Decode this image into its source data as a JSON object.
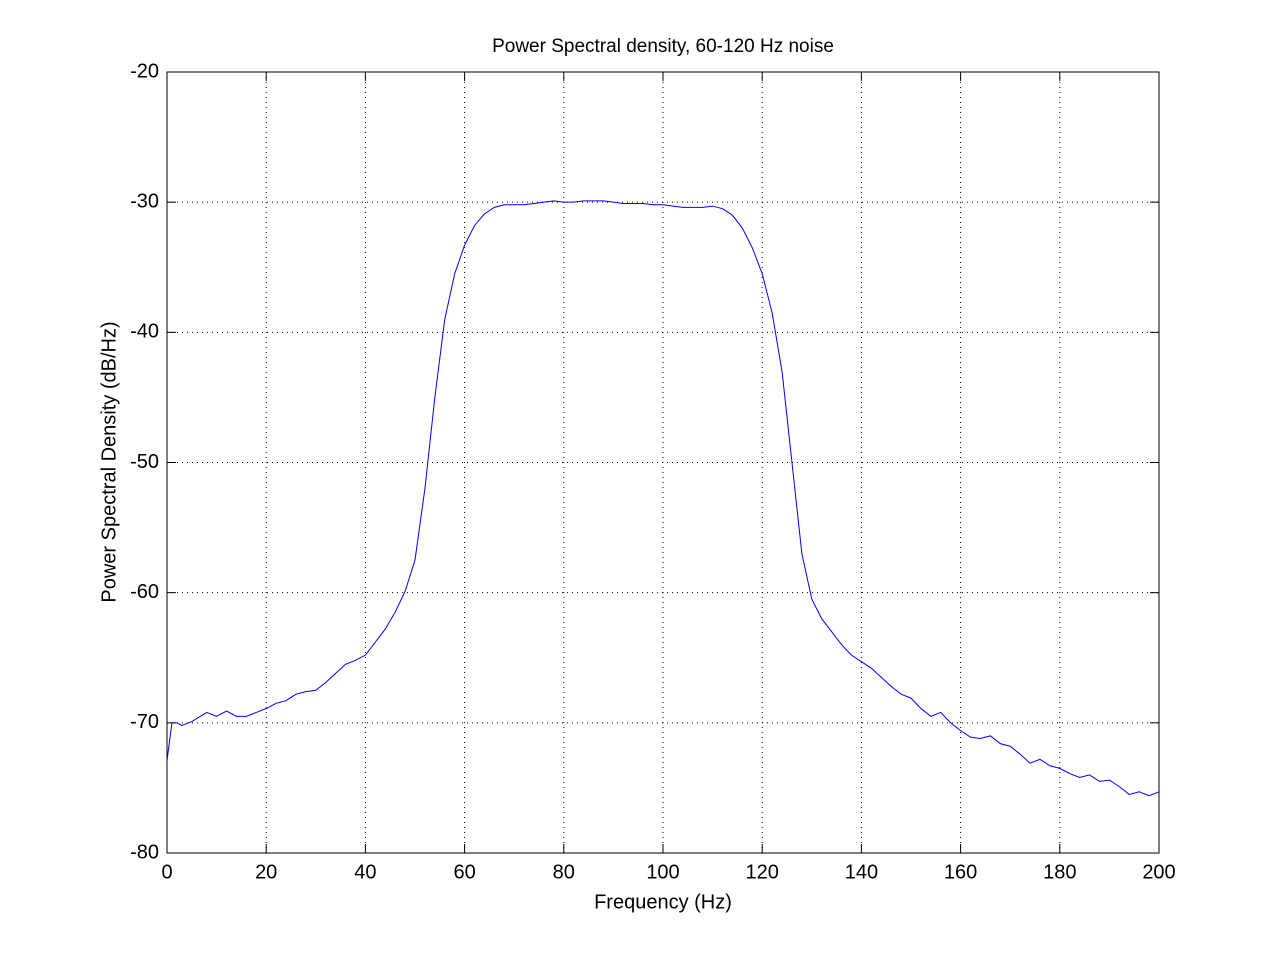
{
  "chart_data": {
    "type": "line",
    "title": "Power Spectral density, 60-120 Hz noise",
    "xlabel": "Frequency (Hz)",
    "ylabel": "Power Spectral Density (dB/Hz)",
    "x": [
      0,
      1,
      2,
      3,
      5,
      8,
      10,
      12,
      14,
      16,
      18,
      20,
      22,
      24,
      26,
      28,
      30,
      32,
      34,
      36,
      38,
      40,
      42,
      44,
      46,
      48,
      50,
      52,
      54,
      56,
      58,
      60,
      62,
      64,
      66,
      68,
      70,
      72,
      74,
      76,
      78,
      80,
      82,
      84,
      86,
      88,
      90,
      92,
      94,
      96,
      98,
      100,
      102,
      104,
      106,
      108,
      110,
      112,
      114,
      116,
      118,
      120,
      122,
      124,
      126,
      128,
      130,
      132,
      134,
      136,
      138,
      140,
      142,
      144,
      146,
      148,
      150,
      152,
      154,
      156,
      158,
      160,
      162,
      164,
      166,
      168,
      170,
      172,
      174,
      176,
      178,
      180,
      182,
      184,
      186,
      188,
      190,
      192,
      194,
      196,
      198,
      200
    ],
    "series": [
      {
        "name": "PSD",
        "color": "#0000ff",
        "values": [
          -72.9,
          -70.0,
          -70.0,
          -70.2,
          -69.9,
          -69.2,
          -69.5,
          -69.1,
          -69.5,
          -69.5,
          -69.2,
          -68.9,
          -68.5,
          -68.3,
          -67.8,
          -67.6,
          -67.5,
          -66.9,
          -66.2,
          -65.5,
          -65.2,
          -64.8,
          -63.8,
          -62.8,
          -61.5,
          -59.9,
          -57.5,
          -52.0,
          -45.0,
          -39.0,
          -35.5,
          -33.3,
          -31.8,
          -30.9,
          -30.4,
          -30.2,
          -30.2,
          -30.2,
          -30.1,
          -30.0,
          -29.9,
          -30.0,
          -30.0,
          -29.9,
          -29.9,
          -29.9,
          -30.0,
          -30.1,
          -30.1,
          -30.1,
          -30.2,
          -30.2,
          -30.3,
          -30.4,
          -30.4,
          -30.4,
          -30.3,
          -30.5,
          -31.0,
          -32.0,
          -33.5,
          -35.5,
          -38.5,
          -43.0,
          -50.0,
          -57.0,
          -60.5,
          -62.0,
          -63.0,
          -64.0,
          -64.8,
          -65.3,
          -65.8,
          -66.5,
          -67.2,
          -67.8,
          -68.1,
          -68.9,
          -69.5,
          -69.2,
          -70.0,
          -70.6,
          -71.1,
          -71.2,
          -71.0,
          -71.6,
          -71.8,
          -72.4,
          -73.1,
          -72.8,
          -73.3,
          -73.5,
          -73.9,
          -74.2,
          -74.0,
          -74.5,
          -74.4,
          -74.9,
          -75.5,
          -75.3,
          -75.6,
          -75.3
        ]
      }
    ],
    "xlim": [
      0,
      200
    ],
    "xticks": [
      0,
      20,
      40,
      60,
      80,
      100,
      120,
      140,
      160,
      180,
      200
    ],
    "ylim": [
      -80,
      -20
    ],
    "yticks": [
      -80,
      -70,
      -60,
      -50,
      -40,
      -30,
      -20
    ],
    "grid": true
  }
}
